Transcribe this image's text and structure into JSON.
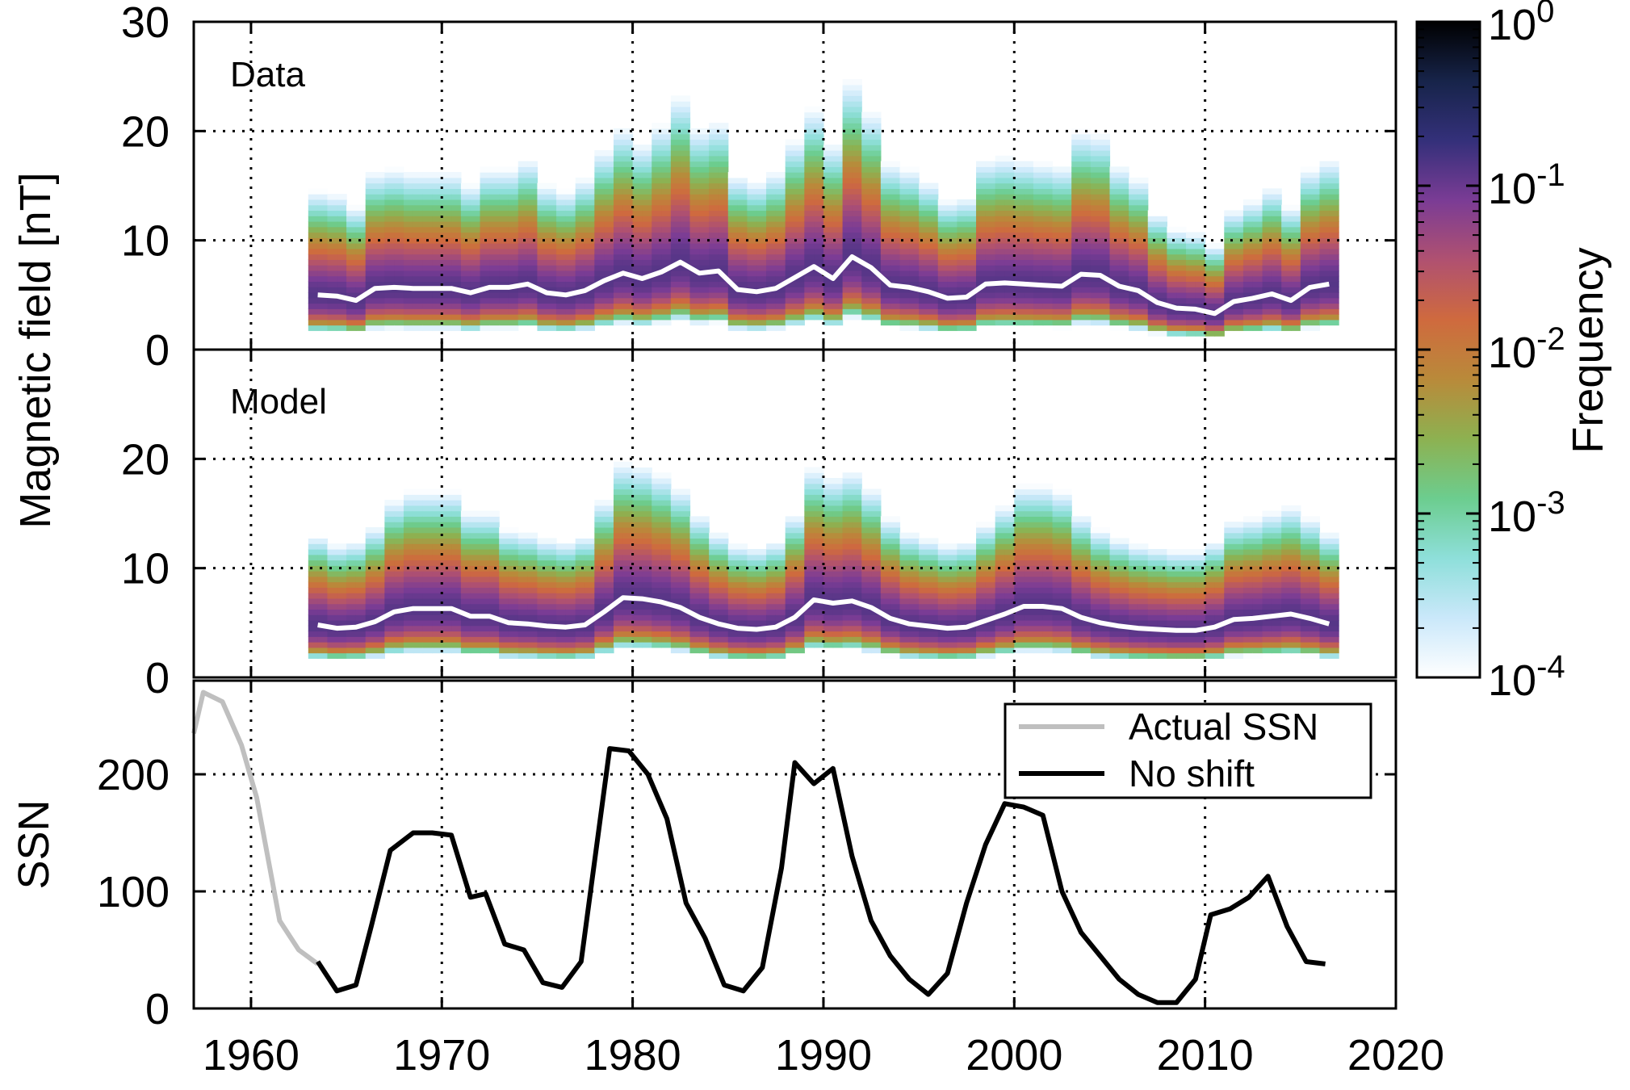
{
  "chart_data": [
    {
      "type": "heatmap",
      "panel_label": "Data",
      "ylabel": "Magnetic field [nT]",
      "xlim": [
        1957,
        2020
      ],
      "ylim": [
        0,
        30
      ],
      "yticks": [
        0,
        10,
        20,
        30
      ],
      "grid": true,
      "x_start": 1963,
      "x_end": 2017,
      "spread_sigma": 0.45,
      "median_line_color": "#ffffff",
      "median_years": [
        1963,
        1964,
        1965,
        1966,
        1967,
        1968,
        1969,
        1970,
        1971,
        1972,
        1973,
        1974,
        1975,
        1976,
        1977,
        1978,
        1979,
        1980,
        1981,
        1982,
        1983,
        1984,
        1985,
        1986,
        1987,
        1988,
        1989,
        1990,
        1991,
        1992,
        1993,
        1994,
        1995,
        1996,
        1997,
        1998,
        1999,
        2000,
        2001,
        2002,
        2003,
        2004,
        2005,
        2006,
        2007,
        2008,
        2009,
        2010,
        2011,
        2012,
        2013,
        2014,
        2015,
        2016
      ],
      "median_field": [
        5.0,
        4.9,
        4.5,
        5.6,
        5.7,
        5.6,
        5.6,
        5.6,
        5.2,
        5.7,
        5.7,
        6.0,
        5.2,
        5.0,
        5.4,
        6.3,
        7.0,
        6.5,
        7.1,
        8.0,
        7.0,
        7.2,
        5.5,
        5.3,
        5.6,
        6.6,
        7.6,
        6.5,
        8.5,
        7.5,
        5.9,
        5.7,
        5.3,
        4.7,
        4.8,
        6.0,
        6.1,
        6.0,
        5.9,
        5.8,
        6.9,
        6.8,
        5.8,
        5.4,
        4.3,
        3.8,
        3.7,
        3.3,
        4.4,
        4.7,
        5.1,
        4.5,
        5.7,
        6.0
      ]
    },
    {
      "type": "heatmap",
      "panel_label": "Model",
      "ylabel": "Magnetic field [nT]",
      "xlim": [
        1957,
        2020
      ],
      "ylim": [
        0,
        30
      ],
      "yticks": [
        0,
        10,
        20
      ],
      "grid": true,
      "x_start": 1963,
      "x_end": 2017,
      "spread_sigma": 0.42,
      "median_line_color": "#ffffff",
      "median_years": [
        1963,
        1964,
        1965,
        1966,
        1967,
        1968,
        1969,
        1970,
        1971,
        1972,
        1973,
        1974,
        1975,
        1976,
        1977,
        1978,
        1979,
        1980,
        1981,
        1982,
        1983,
        1984,
        1985,
        1986,
        1987,
        1988,
        1989,
        1990,
        1991,
        1992,
        1993,
        1994,
        1995,
        1996,
        1997,
        1998,
        1999,
        2000,
        2001,
        2002,
        2003,
        2004,
        2005,
        2006,
        2007,
        2008,
        2009,
        2010,
        2011,
        2012,
        2013,
        2014,
        2015,
        2016
      ],
      "median_field": [
        4.8,
        4.5,
        4.6,
        5.1,
        6.0,
        6.3,
        6.3,
        6.3,
        5.6,
        5.6,
        5.0,
        4.9,
        4.7,
        4.6,
        4.8,
        6.0,
        7.3,
        7.2,
        6.9,
        6.4,
        5.5,
        4.9,
        4.5,
        4.4,
        4.6,
        5.5,
        7.1,
        6.8,
        7.0,
        6.4,
        5.4,
        4.9,
        4.7,
        4.5,
        4.6,
        5.2,
        5.8,
        6.5,
        6.5,
        6.3,
        5.5,
        5.0,
        4.7,
        4.5,
        4.4,
        4.3,
        4.3,
        4.6,
        5.3,
        5.4,
        5.6,
        5.8,
        5.4,
        4.9
      ]
    },
    {
      "type": "line",
      "ylabel": "SSN",
      "xlim": [
        1957,
        2020
      ],
      "ylim": [
        0,
        280
      ],
      "yticks": [
        0,
        100,
        200
      ],
      "xticks": [
        1960,
        1970,
        1980,
        1990,
        2000,
        2010,
        2020
      ],
      "grid": true,
      "legend_position": "top-right",
      "series": [
        {
          "name": "Actual SSN",
          "color": "#bfbfbf",
          "x": [
            1957.0,
            1957.5,
            1958.5,
            1959.5,
            1960.3,
            1961.5,
            1962.5,
            1963.5
          ],
          "y": [
            235,
            270,
            262,
            225,
            180,
            75,
            50,
            38
          ]
        },
        {
          "name": "No shift",
          "color": "#000000",
          "x": [
            1963.5,
            1964.5,
            1965.5,
            1966.3,
            1967.3,
            1968.5,
            1969.5,
            1970.5,
            1971.5,
            1972.3,
            1973.3,
            1974.3,
            1975.3,
            1976.3,
            1977.3,
            1978.8,
            1979.8,
            1980.8,
            1981.8,
            1982.8,
            1983.8,
            1984.8,
            1985.8,
            1986.8,
            1987.8,
            1988.5,
            1989.5,
            1990.5,
            1991.5,
            1992.5,
            1993.5,
            1994.5,
            1995.5,
            1996.5,
            1997.5,
            1998.5,
            1999.5,
            2000.5,
            2001.5,
            2002.5,
            2003.5,
            2004.5,
            2005.5,
            2006.5,
            2007.5,
            2008.5,
            2009.5,
            2010.3,
            2011.3,
            2012.3,
            2013.3,
            2014.3,
            2015.3,
            2016.3
          ],
          "y": [
            40,
            15,
            20,
            70,
            135,
            150,
            150,
            148,
            95,
            98,
            55,
            50,
            22,
            18,
            40,
            222,
            220,
            200,
            162,
            90,
            60,
            20,
            15,
            35,
            120,
            210,
            192,
            205,
            130,
            75,
            45,
            25,
            12,
            30,
            90,
            140,
            175,
            172,
            165,
            100,
            65,
            45,
            25,
            12,
            5,
            5,
            25,
            80,
            85,
            95,
            113,
            70,
            40,
            38
          ]
        }
      ]
    }
  ],
  "colorbar": {
    "label": "Frequency",
    "tick_base": "10",
    "tick_exponents": [
      "0",
      "-1",
      "-2",
      "-3",
      "-4"
    ],
    "scale": "log",
    "range": [
      0.0001,
      1
    ],
    "stops": [
      "#000000",
      "#17244a",
      "#34307a",
      "#7b3c95",
      "#b05170",
      "#cf6a3e",
      "#b98a3a",
      "#8db151",
      "#6ccd8f",
      "#8edfda",
      "#cae8fa",
      "#ffffff"
    ]
  }
}
